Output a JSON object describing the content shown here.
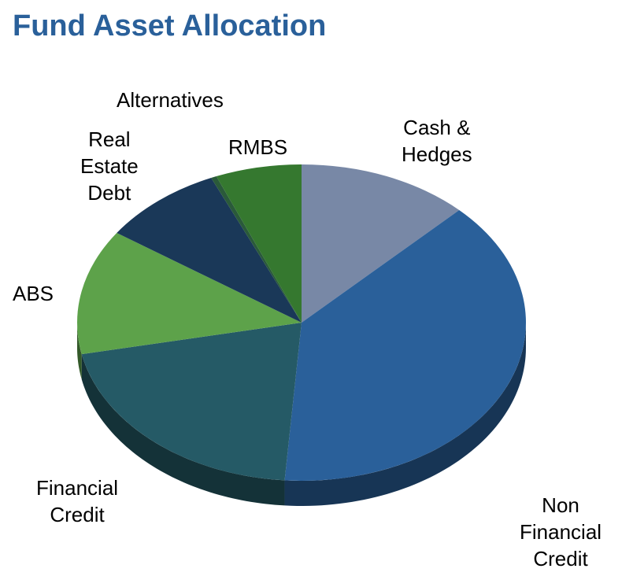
{
  "title": "Fund Asset Allocation",
  "chart_data": {
    "type": "pie",
    "title": "Fund Asset Allocation",
    "style": "3d",
    "start": "12 o'clock, clockwise",
    "slices": [
      {
        "label": "Cash & Hedges",
        "value": 12.4,
        "color": "#7888a6"
      },
      {
        "label": "Non Financial Credit",
        "value": 38.8,
        "color": "#2a609a"
      },
      {
        "label": "Financial Credit",
        "value": 20.6,
        "color": "#255a66"
      },
      {
        "label": "ABS",
        "value": 12.8,
        "color": "#5da24a"
      },
      {
        "label": "Real Estate Debt",
        "value": 8.8,
        "color": "#1a3858"
      },
      {
        "label": "Alternatives",
        "value": 0.4,
        "color": "#2a5a3a"
      },
      {
        "label": "RMBS",
        "value": 6.2,
        "color": "#35782f"
      }
    ],
    "labels": {
      "cash": [
        "Cash &",
        "Hedges"
      ],
      "nonfin": [
        "Non",
        "Financial",
        "Credit"
      ],
      "fin": [
        "Financial",
        "Credit"
      ],
      "abs": [
        "ABS"
      ],
      "red": [
        "Real",
        "Estate",
        "Debt"
      ],
      "alt": [
        "Alternatives"
      ],
      "rmbs": [
        "RMBS"
      ]
    }
  }
}
